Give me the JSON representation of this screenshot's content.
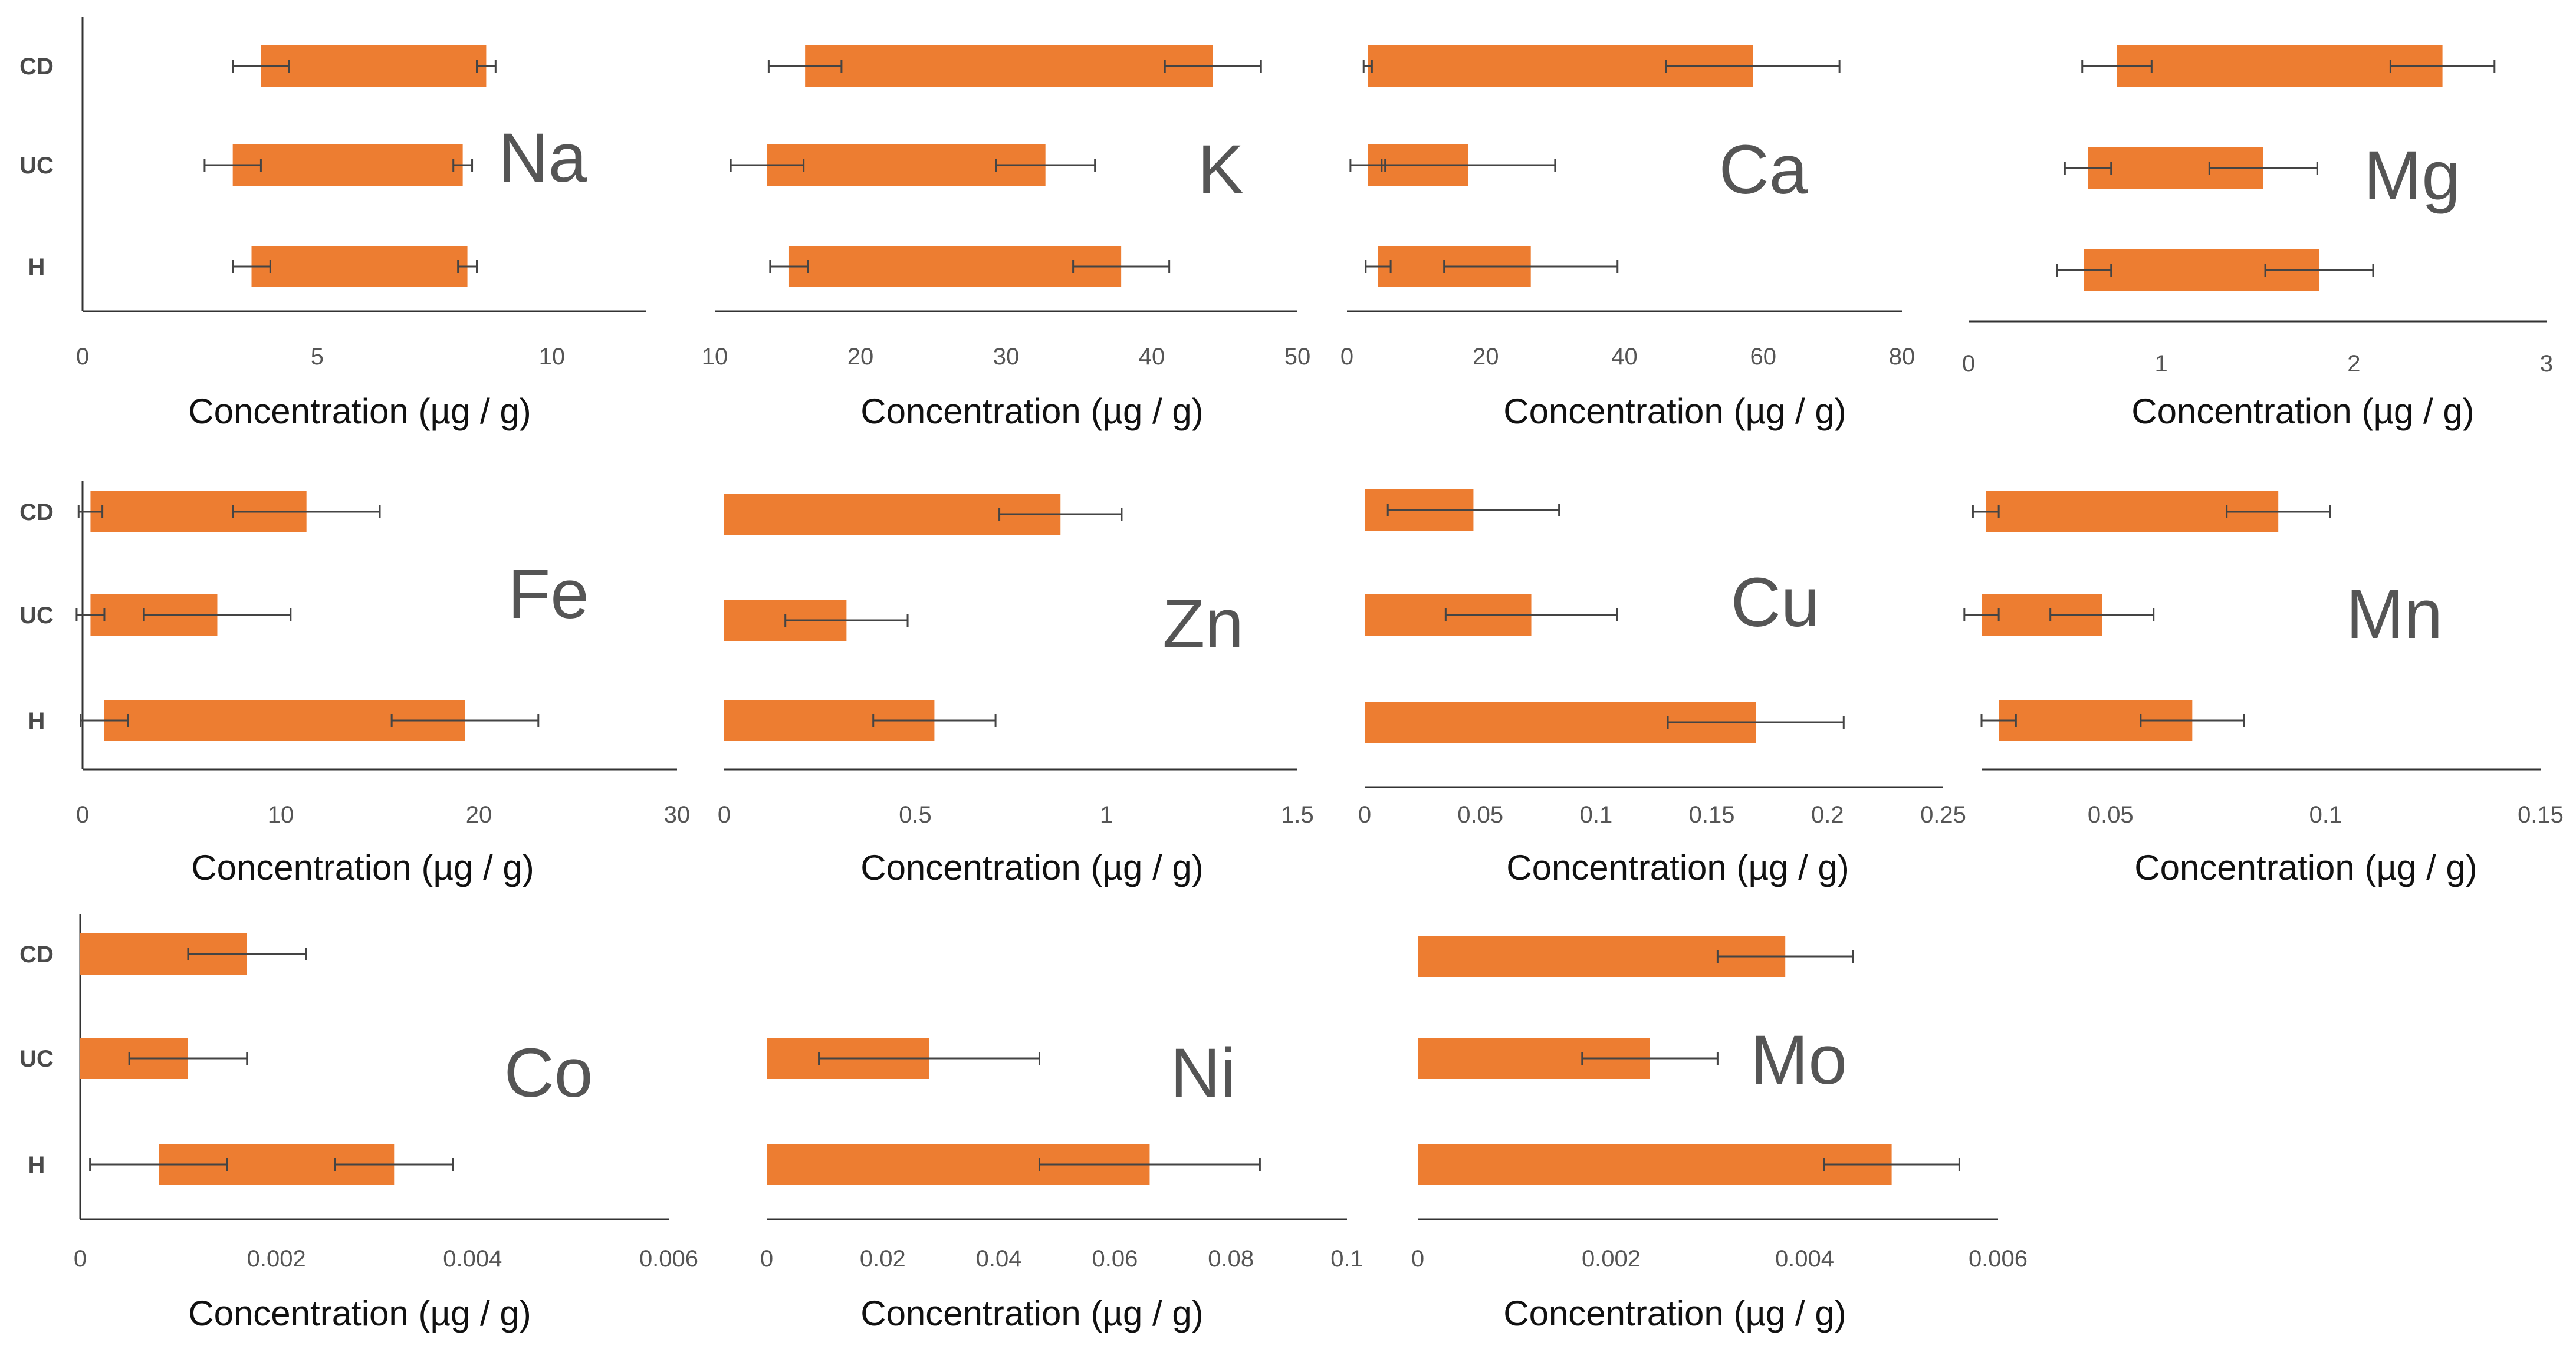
{
  "chart_data": [
    {
      "type": "bar",
      "orientation": "horizontal",
      "title": "Na",
      "xlabel": "Concentration (µg / g)",
      "categories": [
        "CD",
        "UC",
        "H"
      ],
      "xlim": [
        0,
        12
      ],
      "xticks": [
        0,
        5,
        10
      ],
      "tick_labels": [
        "0",
        "5",
        "10"
      ],
      "values": [
        8.6,
        8.1,
        8.2
      ],
      "start": [
        3.8,
        3.2,
        3.6
      ],
      "start_err": [
        0.6,
        0.6,
        0.4
      ],
      "value_err": [
        0.2,
        0.2,
        0.2
      ]
    },
    {
      "type": "bar",
      "orientation": "horizontal",
      "title": "K",
      "xlabel": "Concentration (µg / g)",
      "categories": [
        "CD",
        "UC",
        "H"
      ],
      "xlim": [
        10,
        50
      ],
      "xticks": [
        10,
        20,
        30,
        40,
        50
      ],
      "tick_labels": [
        "10",
        "20",
        "30",
        "40",
        "50"
      ],
      "values": [
        44.2,
        32.7,
        37.9
      ],
      "start": [
        16.2,
        13.6,
        15.1
      ],
      "start_err": [
        2.5,
        2.5,
        1.3
      ],
      "value_err": [
        3.3,
        3.4,
        3.3
      ]
    },
    {
      "type": "bar",
      "orientation": "horizontal",
      "title": "Ca",
      "xlabel": "Concentration (µg / g)",
      "categories": [
        "CD",
        "UC",
        "H"
      ],
      "xlim": [
        0,
        80
      ],
      "xticks": [
        0,
        20,
        40,
        60,
        80
      ],
      "tick_labels": [
        "0",
        "20",
        "40",
        "60",
        "80"
      ],
      "values": [
        58.5,
        17.5,
        26.5
      ],
      "start": [
        3,
        3,
        4.5
      ],
      "start_err": [
        0.6,
        2.5,
        1.8
      ],
      "value_err": [
        12.5,
        12.5,
        12.5
      ]
    },
    {
      "type": "bar",
      "orientation": "horizontal",
      "title": "Mg",
      "xlabel": "Concentration (µg / g)",
      "categories": [
        "CD",
        "UC",
        "H"
      ],
      "xlim": [
        0,
        3
      ],
      "xticks": [
        0,
        1,
        2,
        3
      ],
      "tick_labels": [
        "0",
        "1",
        "2",
        "3"
      ],
      "values": [
        2.46,
        1.53,
        1.82
      ],
      "start": [
        0.77,
        0.62,
        0.6
      ],
      "start_err": [
        0.18,
        0.12,
        0.14
      ],
      "value_err": [
        0.27,
        0.28,
        0.28
      ]
    },
    {
      "type": "bar",
      "orientation": "horizontal",
      "title": "Fe",
      "xlabel": "Concentration (µg / g)",
      "categories": [
        "CD",
        "UC",
        "H"
      ],
      "xlim": [
        0,
        30
      ],
      "xticks": [
        0,
        10,
        20,
        30
      ],
      "tick_labels": [
        "0",
        "10",
        "20",
        "30"
      ],
      "values": [
        11.3,
        6.8,
        19.3
      ],
      "start": [
        0.4,
        0.4,
        1.1
      ],
      "start_err": [
        0.6,
        0.7,
        1.2
      ],
      "value_err": [
        3.7,
        3.7,
        3.7
      ]
    },
    {
      "type": "bar",
      "orientation": "horizontal",
      "title": "Zn",
      "xlabel": "Concentration (µg / g)",
      "categories": [
        "CD",
        "UC",
        "H"
      ],
      "xlim": [
        0,
        1.5
      ],
      "xticks": [
        0,
        0.5,
        1,
        1.5
      ],
      "tick_labels": [
        "0",
        "0.5",
        "1",
        "1.5"
      ],
      "values": [
        0.88,
        0.32,
        0.55
      ],
      "start": [
        0,
        0,
        0
      ],
      "start_err": [
        0,
        0,
        0
      ],
      "value_err": [
        0.16,
        0.16,
        0.16
      ]
    },
    {
      "type": "bar",
      "orientation": "horizontal",
      "title": "Cu",
      "xlabel": "Concentration (µg / g)",
      "categories": [
        "CD",
        "UC",
        "H"
      ],
      "xlim": [
        0,
        0.25
      ],
      "xticks": [
        0,
        0.05,
        0.1,
        0.15,
        0.2,
        0.25
      ],
      "tick_labels": [
        "0",
        "0.05",
        "0.1",
        "0.15",
        "0.2",
        "0.25"
      ],
      "values": [
        0.047,
        0.072,
        0.169
      ],
      "start": [
        0,
        0,
        0
      ],
      "start_err": [
        0,
        0,
        0
      ],
      "value_err": [
        0.037,
        0.037,
        0.038
      ]
    },
    {
      "type": "bar",
      "orientation": "horizontal",
      "title": "Mn",
      "xlabel": "Concentration (µg / g)",
      "categories": [
        "CD",
        "UC",
        "H"
      ],
      "xlim": [
        0.02,
        0.15
      ],
      "xticks": [
        0.05,
        0.1,
        0.15
      ],
      "tick_labels": [
        "0.05",
        "0.1",
        "0.15"
      ],
      "values": [
        0.089,
        0.048,
        0.069
      ],
      "start": [
        0.021,
        0.02,
        0.024
      ],
      "start_err": [
        0.003,
        0.004,
        0.004
      ],
      "value_err": [
        0.012,
        0.012,
        0.012
      ]
    },
    {
      "type": "bar",
      "orientation": "horizontal",
      "title": "Co",
      "xlabel": "Concentration (µg / g)",
      "categories": [
        "CD",
        "UC",
        "H"
      ],
      "xlim": [
        0,
        0.006
      ],
      "xticks": [
        0,
        0.002,
        0.004,
        0.006
      ],
      "tick_labels": [
        "0",
        "0.002",
        "0.004",
        "0.006"
      ],
      "values": [
        0.0017,
        0.0011,
        0.0032
      ],
      "start": [
        0,
        0,
        0.0008
      ],
      "start_err": [
        0,
        0,
        0.0007
      ],
      "value_err": [
        0.0006,
        0.0006,
        0.0006
      ]
    },
    {
      "type": "bar",
      "orientation": "horizontal",
      "title": "Ni",
      "xlabel": "Concentration (µg / g)",
      "categories": [
        "CD",
        "UC",
        "H"
      ],
      "xlim": [
        0,
        0.1
      ],
      "xticks": [
        0,
        0.02,
        0.04,
        0.06,
        0.08,
        0.1
      ],
      "tick_labels": [
        "0",
        "0.02",
        "0.04",
        "0.06",
        "0.08",
        "0.1"
      ],
      "values": [
        null,
        0.028,
        0.066
      ],
      "start": [
        0,
        0,
        0
      ],
      "start_err": [
        0,
        0,
        0
      ],
      "value_err": [
        0,
        0.019,
        0.019
      ]
    },
    {
      "type": "bar",
      "orientation": "horizontal",
      "title": "Mo",
      "xlabel": "Concentration (µg / g)",
      "categories": [
        "CD",
        "UC",
        "H"
      ],
      "xlim": [
        0,
        0.006
      ],
      "xticks": [
        0,
        0.002,
        0.004,
        0.006
      ],
      "tick_labels": [
        "0",
        "0.002",
        "0.004",
        "0.006"
      ],
      "values": [
        0.0038,
        0.0024,
        0.0049
      ],
      "start": [
        0,
        0,
        0
      ],
      "start_err": [
        0,
        0,
        0
      ],
      "value_err": [
        0.0007,
        0.0007,
        0.0007
      ]
    }
  ],
  "colors": {
    "bar": "#ED7D31",
    "error_bar": "#444444",
    "axis": "#333333",
    "title": "#555555",
    "text": "#111111"
  }
}
